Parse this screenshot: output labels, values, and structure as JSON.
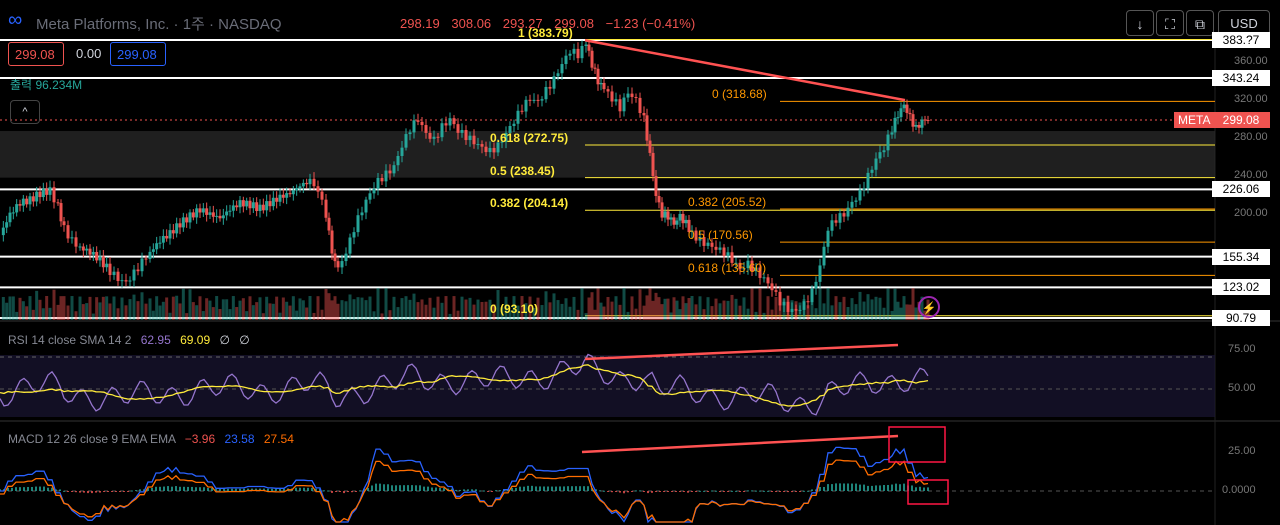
{
  "header": {
    "symbol_title": "Meta Platforms, Inc. · 1주 · NASDAQ",
    "ohlc": {
      "open": "298.19",
      "high": "308.06",
      "low": "293.27",
      "close": "299.08",
      "change": "−1.23 (−0.41%)"
    },
    "currency": "USD",
    "buttons": {
      "download": "↓",
      "fullscreen": "⛶",
      "snapshot": "⧉"
    }
  },
  "price_boxes": {
    "sell": "299.08",
    "spread": "0.00",
    "buy": "299.08"
  },
  "volume": {
    "label": "출력",
    "value": "96.234M"
  },
  "colors": {
    "up": "#26a69a",
    "down": "#ef5350",
    "fib_yellow": "#ffeb3b",
    "fib_orange": "#ff9800",
    "trend": "#ff5252"
  },
  "chart_data": [
    {
      "type": "candlestick",
      "symbol": "META",
      "timeframe": "1W",
      "last_price": 299.08,
      "y_axis_ticks": [
        360.0,
        320.0,
        280.0,
        240.0,
        200.0
      ],
      "highlight_levels": [
        {
          "label": "383.?7",
          "value": 383.27
        },
        {
          "label": "343.24",
          "value": 343.24
        },
        {
          "label": "226.06",
          "value": 226.06
        },
        {
          "label": "155.34",
          "value": 155.34
        },
        {
          "label": "123.02",
          "value": 123.02
        },
        {
          "label": "90.79",
          "value": 90.79
        }
      ],
      "price_tag": {
        "label": "META",
        "value": "299.08"
      },
      "fib_retracement_1": [
        {
          "label": "1 (383.79)",
          "level": 383.79
        },
        {
          "label": "0.618 (272.75)",
          "level": 272.75
        },
        {
          "label": "0.5 (238.45)",
          "level": 238.45
        },
        {
          "label": "0.382 (204.14)",
          "level": 204.14
        },
        {
          "label": "0 (93.10)",
          "level": 93.1
        }
      ],
      "fib_retracement_2": [
        {
          "label": "0 (318.68)",
          "level": 318.68
        },
        {
          "label": "0.382 (205.52)",
          "level": 205.52
        },
        {
          "label": "0.5 (170.56)",
          "level": 170.56
        },
        {
          "label": "0.618 (135.60)",
          "level": 135.6
        }
      ],
      "price_path": [
        [
          0,
          178
        ],
        [
          10,
          200
        ],
        [
          20,
          212
        ],
        [
          30,
          215
        ],
        [
          40,
          222
        ],
        [
          50,
          225
        ],
        [
          58,
          208
        ],
        [
          64,
          185
        ],
        [
          72,
          172
        ],
        [
          80,
          165
        ],
        [
          90,
          160
        ],
        [
          100,
          152
        ],
        [
          110,
          140
        ],
        [
          118,
          132
        ],
        [
          126,
          128
        ],
        [
          134,
          138
        ],
        [
          142,
          150
        ],
        [
          150,
          160
        ],
        [
          160,
          172
        ],
        [
          170,
          180
        ],
        [
          180,
          190
        ],
        [
          190,
          198
        ],
        [
          200,
          205
        ],
        [
          210,
          200
        ],
        [
          220,
          196
        ],
        [
          230,
          205
        ],
        [
          240,
          212
        ],
        [
          250,
          210
        ],
        [
          260,
          206
        ],
        [
          270,
          212
        ],
        [
          280,
          218
        ],
        [
          290,
          222
        ],
        [
          300,
          230
        ],
        [
          310,
          235
        ],
        [
          318,
          225
        ],
        [
          326,
          200
        ],
        [
          332,
          160
        ],
        [
          338,
          142
        ],
        [
          346,
          160
        ],
        [
          354,
          185
        ],
        [
          362,
          205
        ],
        [
          370,
          222
        ],
        [
          378,
          235
        ],
        [
          386,
          242
        ],
        [
          394,
          250
        ],
        [
          402,
          272
        ],
        [
          410,
          290
        ],
        [
          418,
          300
        ],
        [
          426,
          285
        ],
        [
          434,
          278
        ],
        [
          442,
          292
        ],
        [
          450,
          300
        ],
        [
          458,
          288
        ],
        [
          466,
          282
        ],
        [
          474,
          276
        ],
        [
          482,
          270
        ],
        [
          490,
          266
        ],
        [
          498,
          272
        ],
        [
          506,
          285
        ],
        [
          514,
          298
        ],
        [
          522,
          312
        ],
        [
          530,
          322
        ],
        [
          538,
          318
        ],
        [
          546,
          330
        ],
        [
          554,
          342
        ],
        [
          562,
          358
        ],
        [
          570,
          372
        ],
        [
          578,
          368
        ],
        [
          586,
          380
        ],
        [
          592,
          358
        ],
        [
          598,
          340
        ],
        [
          604,
          332
        ],
        [
          612,
          322
        ],
        [
          620,
          312
        ],
        [
          628,
          328
        ],
        [
          636,
          320
        ],
        [
          644,
          300
        ],
        [
          650,
          262
        ],
        [
          656,
          220
        ],
        [
          662,
          200
        ],
        [
          668,
          198
        ],
        [
          674,
          190
        ],
        [
          680,
          198
        ],
        [
          686,
          190
        ],
        [
          692,
          180
        ],
        [
          700,
          172
        ],
        [
          708,
          168
        ],
        [
          716,
          164
        ],
        [
          724,
          160
        ],
        [
          732,
          152
        ],
        [
          740,
          142
        ],
        [
          748,
          148
        ],
        [
          756,
          140
        ],
        [
          764,
          132
        ],
        [
          772,
          122
        ],
        [
          780,
          108
        ],
        [
          788,
          100
        ],
        [
          796,
          98
        ],
        [
          804,
          105
        ],
        [
          812,
          118
        ],
        [
          820,
          145
        ],
        [
          828,
          185
        ],
        [
          836,
          195
        ],
        [
          844,
          200
        ],
        [
          852,
          212
        ],
        [
          860,
          222
        ],
        [
          868,
          240
        ],
        [
          876,
          258
        ],
        [
          884,
          270
        ],
        [
          892,
          290
        ],
        [
          898,
          305
        ],
        [
          904,
          315
        ],
        [
          910,
          302
        ],
        [
          916,
          290
        ],
        [
          922,
          298
        ],
        [
          928,
          300
        ]
      ]
    },
    {
      "type": "line",
      "title": "RSI 14 close SMA 14 2",
      "values_text": [
        "62.95",
        "69.09",
        "∅",
        "∅"
      ],
      "y_axis_ticks": [
        75.0,
        50.0
      ],
      "series": [
        {
          "name": "RSI",
          "color": "#9575cd"
        },
        {
          "name": "SMA",
          "color": "#ffeb3b"
        }
      ]
    },
    {
      "type": "line",
      "title": "MACD 12 26 close 9 EMA EMA",
      "values_text": [
        "−3.96",
        "23.58",
        "27.54"
      ],
      "y_axis_ticks": [
        25.0,
        0.0
      ],
      "series": [
        {
          "name": "MACD",
          "color": "#2962ff"
        },
        {
          "name": "Signal",
          "color": "#ff6d00"
        },
        {
          "name": "Histogram"
        }
      ]
    }
  ]
}
